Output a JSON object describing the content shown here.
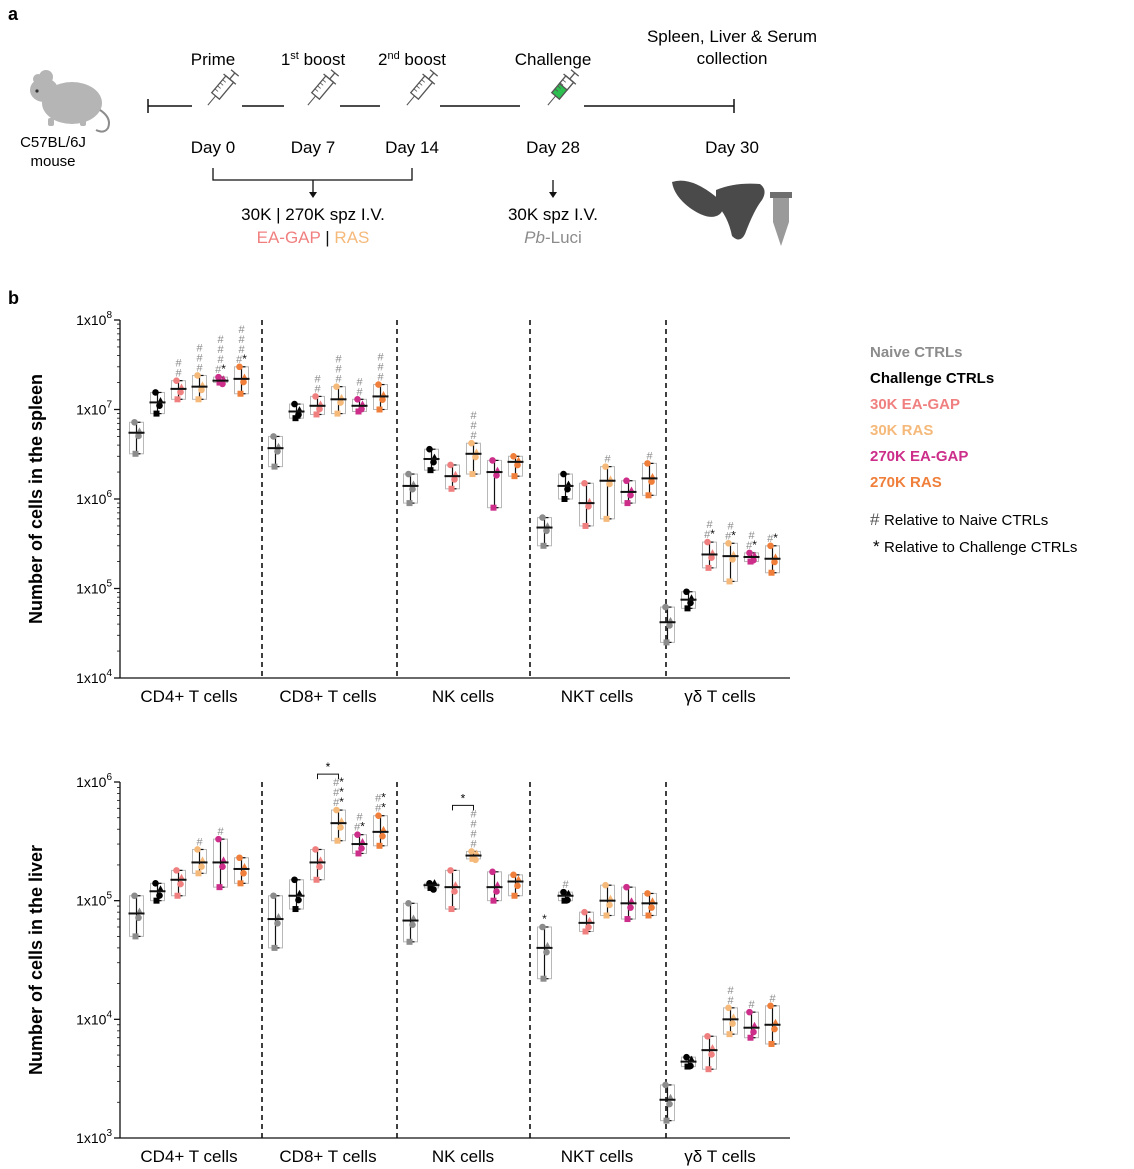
{
  "panel_a": {
    "label": "a",
    "mouse_label_1": "C57BL/6J",
    "mouse_label_2": "mouse",
    "steps": [
      {
        "name": "Prime",
        "sup": "",
        "day": "Day 0"
      },
      {
        "name": "1",
        "sup": "st",
        "suffix": " boost",
        "day": "Day 7"
      },
      {
        "name": "2",
        "sup": "nd",
        "suffix": " boost",
        "day": "Day 14"
      },
      {
        "name": "Challenge",
        "sup": "",
        "day": "Day 28"
      }
    ],
    "collection_line1": "Spleen, Liver & Serum",
    "collection_line2": "collection",
    "collection_day": "Day 30",
    "vaccine_dose": "30K | 270K spz I.V.",
    "vaccine_eagap": "EA-GAP",
    "vaccine_sep": " | ",
    "vaccine_ras": "RAS",
    "challenge_dose": "30K spz I.V.",
    "challenge_pb": "Pb",
    "challenge_luci": "-Luci",
    "colors": {
      "eagap": "#f08080",
      "ras": "#f5b97a",
      "syringe_green": "#2dbf4f"
    }
  },
  "panel_b_label": "b",
  "legend": {
    "items": [
      {
        "label": "Naive CTRLs",
        "color": "#8c8c8c"
      },
      {
        "label": "Challenge CTRLs",
        "color": "#000000"
      },
      {
        "label": "30K EA-GAP",
        "color": "#f08080"
      },
      {
        "label": "30K RAS",
        "color": "#f5b97a"
      },
      {
        "label": "270K EA-GAP",
        "color": "#cc2e8a"
      },
      {
        "label": "270K RAS",
        "color": "#ef7f3a"
      }
    ],
    "note_hash_symbol": "#",
    "note_hash": "Relative to Naive CTRLs",
    "note_star_symbol": "*",
    "note_star": "Relative to Challenge CTRLs"
  },
  "chart_data": [
    {
      "type": "box",
      "ylabel": "Number of cells in the spleen",
      "yscale": "log",
      "ylim": [
        10000,
        100000000
      ],
      "yticks": [
        "1x10^4",
        "1x10^5",
        "1x10^6",
        "1x10^7",
        "1x10^8"
      ],
      "categories": [
        "CD4+ T cells",
        "CD8+ T cells",
        "NK cells",
        "NKT cells",
        "γδ T cells"
      ],
      "groups": [
        "Naive CTRLs",
        "Challenge CTRLs",
        "30K EA-GAP",
        "30K RAS",
        "270K EA-GAP",
        "270K RAS"
      ],
      "series": [
        {
          "name": "Naive CTRLs",
          "mean": [
            5500000,
            3700000,
            1400000,
            480000,
            42000
          ],
          "lo": [
            3200000,
            2300000,
            900000,
            300000,
            25000
          ],
          "hi": [
            7200000,
            5000000,
            1900000,
            620000,
            62000
          ]
        },
        {
          "name": "Challenge CTRLs",
          "mean": [
            12000000,
            9500000,
            2800000,
            1400000,
            75000
          ],
          "lo": [
            9000000,
            8000000,
            2100000,
            1000000,
            60000
          ],
          "hi": [
            15500000,
            11500000,
            3600000,
            1900000,
            92000
          ]
        },
        {
          "name": "30K EA-GAP",
          "mean": [
            17000000,
            11000000,
            1800000,
            900000,
            240000
          ],
          "lo": [
            13000000,
            8800000,
            1300000,
            500000,
            170000
          ],
          "hi": [
            21000000,
            14000000,
            2400000,
            1500000,
            330000
          ]
        },
        {
          "name": "30K RAS",
          "mean": [
            18000000,
            13000000,
            3200000,
            1600000,
            230000
          ],
          "lo": [
            13000000,
            9000000,
            1900000,
            600000,
            120000
          ],
          "hi": [
            24000000,
            18000000,
            4200000,
            2300000,
            320000
          ]
        },
        {
          "name": "270K EA-GAP",
          "mean": [
            21000000,
            11000000,
            2000000,
            1200000,
            225000
          ],
          "lo": [
            20000000,
            9500000,
            800000,
            900000,
            200000
          ],
          "hi": [
            23000000,
            13000000,
            2700000,
            1600000,
            250000
          ]
        },
        {
          "name": "270K RAS",
          "mean": [
            22000000,
            14000000,
            2600000,
            1700000,
            215000
          ],
          "lo": [
            15000000,
            10000000,
            1800000,
            1100000,
            150000
          ],
          "hi": [
            30000000,
            19000000,
            3000000,
            2500000,
            300000
          ]
        }
      ],
      "annotations": [
        {
          "cat": 0,
          "group": 2,
          "marks": [
            "#",
            "#"
          ]
        },
        {
          "cat": 0,
          "group": 3,
          "marks": [
            "#",
            "#",
            "#"
          ]
        },
        {
          "cat": 0,
          "group": 4,
          "marks": [
            "#",
            "#",
            "#",
            "#*"
          ]
        },
        {
          "cat": 0,
          "group": 5,
          "marks": [
            "#",
            "#",
            "#",
            "#*"
          ]
        },
        {
          "cat": 1,
          "group": 2,
          "marks": [
            "#",
            "#"
          ]
        },
        {
          "cat": 1,
          "group": 3,
          "marks": [
            "#",
            "#",
            "#"
          ]
        },
        {
          "cat": 1,
          "group": 4,
          "marks": [
            "#",
            "#"
          ]
        },
        {
          "cat": 1,
          "group": 5,
          "marks": [
            "#",
            "#",
            "#"
          ]
        },
        {
          "cat": 2,
          "group": 3,
          "marks": [
            "#",
            "#",
            "#"
          ]
        },
        {
          "cat": 3,
          "group": 3,
          "marks": [
            "#"
          ]
        },
        {
          "cat": 3,
          "group": 5,
          "marks": [
            "#"
          ]
        },
        {
          "cat": 4,
          "group": 2,
          "marks": [
            "#",
            "#*"
          ]
        },
        {
          "cat": 4,
          "group": 3,
          "marks": [
            "#",
            "#*"
          ]
        },
        {
          "cat": 4,
          "group": 4,
          "marks": [
            "#",
            "#*"
          ]
        },
        {
          "cat": 4,
          "group": 5,
          "marks": [
            "#*"
          ]
        }
      ],
      "brackets": []
    },
    {
      "type": "box",
      "ylabel": "Number of cells in the liver",
      "yscale": "log",
      "ylim": [
        1000,
        1000000
      ],
      "yticks": [
        "1x10^3",
        "1x10^4",
        "1x10^5",
        "1x10^6"
      ],
      "categories": [
        "CD4+ T cells",
        "CD8+ T cells",
        "NK cells",
        "NKT cells",
        "γδ T cells"
      ],
      "groups": [
        "Naive CTRLs",
        "Challenge CTRLs",
        "30K EA-GAP",
        "30K RAS",
        "270K EA-GAP",
        "270K RAS"
      ],
      "series": [
        {
          "name": "Naive CTRLs",
          "mean": [
            78000,
            70000,
            68000,
            40000,
            2100
          ],
          "lo": [
            50000,
            40000,
            45000,
            22000,
            1400
          ],
          "hi": [
            110000,
            110000,
            95000,
            60000,
            2800
          ]
        },
        {
          "name": "Challenge CTRLs",
          "mean": [
            120000,
            110000,
            135000,
            110000,
            4400
          ],
          "lo": [
            100000,
            85000,
            128000,
            100000,
            4000
          ],
          "hi": [
            140000,
            150000,
            140000,
            118000,
            4800
          ]
        },
        {
          "name": "30K EA-GAP",
          "mean": [
            150000,
            210000,
            130000,
            65000,
            5500
          ],
          "lo": [
            110000,
            150000,
            85000,
            55000,
            3800
          ],
          "hi": [
            180000,
            270000,
            180000,
            80000,
            7200
          ]
        },
        {
          "name": "30K RAS",
          "mean": [
            210000,
            450000,
            240000,
            100000,
            10000
          ],
          "lo": [
            170000,
            320000,
            225000,
            75000,
            7500
          ],
          "hi": [
            270000,
            580000,
            260000,
            135000,
            12500
          ]
        },
        {
          "name": "270K EA-GAP",
          "mean": [
            210000,
            300000,
            130000,
            95000,
            8500
          ],
          "lo": [
            130000,
            250000,
            100000,
            70000,
            7000
          ],
          "hi": [
            330000,
            360000,
            175000,
            130000,
            11500
          ]
        },
        {
          "name": "270K RAS",
          "mean": [
            185000,
            380000,
            145000,
            95000,
            9000
          ],
          "lo": [
            140000,
            290000,
            110000,
            75000,
            6200
          ],
          "hi": [
            230000,
            520000,
            165000,
            115000,
            13000
          ]
        }
      ],
      "annotations": [
        {
          "cat": 0,
          "group": 3,
          "marks": [
            "#"
          ]
        },
        {
          "cat": 0,
          "group": 4,
          "marks": [
            "#"
          ]
        },
        {
          "cat": 1,
          "group": 3,
          "marks": [
            "#*",
            "#*",
            "#*"
          ]
        },
        {
          "cat": 1,
          "group": 4,
          "marks": [
            "#",
            "#*"
          ]
        },
        {
          "cat": 1,
          "group": 5,
          "marks": [
            "#*",
            "#*"
          ]
        },
        {
          "cat": 2,
          "group": 3,
          "marks": [
            "#",
            "#",
            "#",
            "#"
          ]
        },
        {
          "cat": 3,
          "group": 0,
          "marks": [
            "*"
          ]
        },
        {
          "cat": 3,
          "group": 1,
          "marks": [
            "#"
          ]
        },
        {
          "cat": 4,
          "group": 3,
          "marks": [
            "#",
            "#"
          ]
        },
        {
          "cat": 4,
          "group": 4,
          "marks": [
            "#"
          ]
        },
        {
          "cat": 4,
          "group": 5,
          "marks": [
            "#"
          ]
        }
      ],
      "brackets": [
        {
          "cat": 1,
          "from": 2,
          "to": 3,
          "mark": "*"
        },
        {
          "cat": 2,
          "from": 2,
          "to": 3,
          "mark": "*"
        }
      ]
    }
  ]
}
